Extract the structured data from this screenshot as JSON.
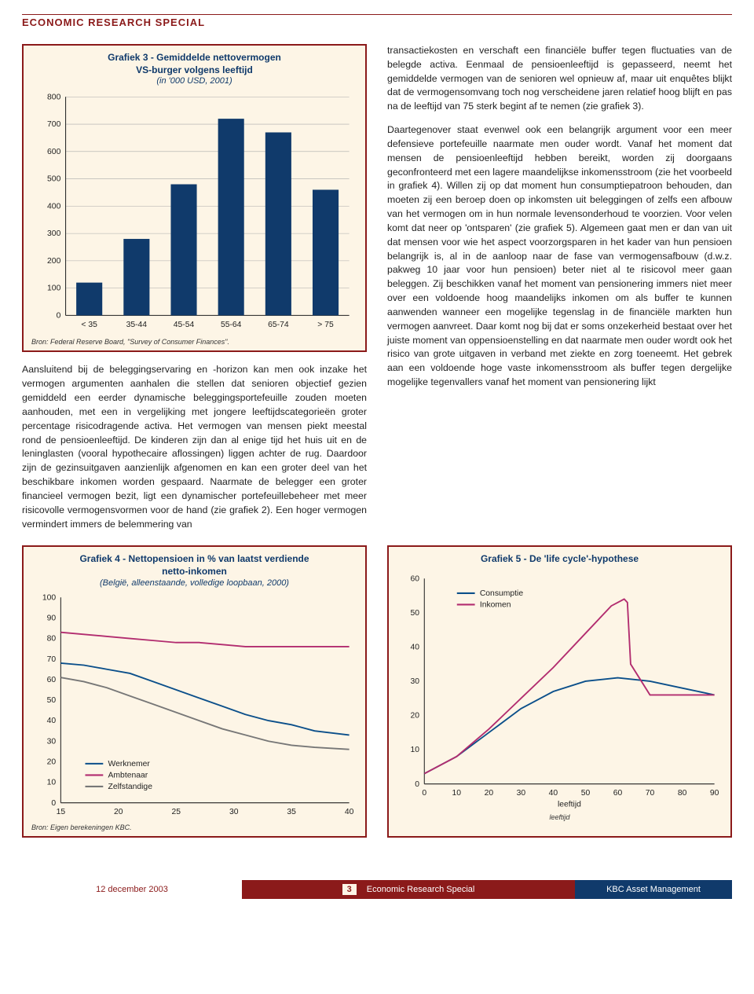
{
  "header": {
    "title": "ECONOMIC RESEARCH SPECIAL"
  },
  "chart3": {
    "type": "bar",
    "title_line1": "Grafiek 3 - Gemiddelde nettovermogen",
    "title_line2": "VS-burger volgens leeftijd",
    "subtitle": "(in '000 USD, 2001)",
    "categories": [
      "< 35",
      "35-44",
      "45-54",
      "55-64",
      "65-74",
      "> 75"
    ],
    "values": [
      120,
      280,
      480,
      720,
      670,
      460
    ],
    "ylim": [
      0,
      800
    ],
    "ytick_step": 100,
    "bar_color": "#103a6b",
    "background_color": "#fdf5e6",
    "source": "Bron: Federal Reserve Board, \"Survey of Consumer Finances\"."
  },
  "left_para": "Aansluitend bij de beleggingservaring en -horizon kan men ook inzake het vermogen argumenten aanhalen die stellen dat senioren objectief gezien gemiddeld een eerder dynamische beleggingsportefeuille zouden moeten aanhouden, met een in vergelijking met jongere leeftijdscategorieën groter percentage risicodragende activa. Het vermogen van mensen piekt meestal rond de pensioenleeftijd. De kinderen zijn dan al enige tijd het huis uit en de leninglasten (vooral hypothecaire aflossingen) liggen achter de rug. Daardoor zijn de gezinsuitgaven aanzienlijk afgenomen en kan een groter deel van het beschikbare inkomen worden gespaard. Naarmate de belegger een groter financieel vermogen bezit, ligt een dynamischer portefeuillebeheer met meer risicovolle vermogensvormen voor de hand (zie grafiek 2). Een hoger vermogen vermindert immers de belemmering van",
  "right_para1": "transactiekosten en verschaft een financiële buffer tegen fluctuaties van de belegde activa. Eenmaal de pensioenleeftijd is gepasseerd, neemt het gemiddelde vermogen van de senioren wel opnieuw af, maar uit enquêtes blijkt dat de vermogensomvang toch nog verscheidene jaren relatief hoog blijft en pas na de leeftijd van 75 sterk begint af te nemen (zie grafiek 3).",
  "right_para2": "Daartegenover staat evenwel ook een belangrijk argument voor een meer defensieve portefeuille naarmate men ouder wordt. Vanaf het moment dat mensen de pensioenleeftijd hebben bereikt, worden zij doorgaans geconfronteerd met een lagere maandelijkse inkomensstroom (zie het voorbeeld in grafiek 4). Willen zij op dat moment hun consumptiepatroon behouden, dan moeten zij een beroep doen op inkomsten uit beleggingen of zelfs een afbouw van het vermogen om in hun normale levensonderhoud te voorzien. Voor velen komt dat neer op 'ontsparen' (zie grafiek 5). Algemeen gaat men er dan van uit dat mensen voor wie het aspect voorzorgsparen in het kader van hun pensioen belangrijk is, al in de aanloop naar de fase van vermogensafbouw (d.w.z. pakweg 10 jaar voor hun pensioen) beter niet al te risicovol meer gaan beleggen. Zij beschikken vanaf het moment van pensionering immers niet meer over een voldoende hoog maandelijks inkomen om als buffer te kunnen aanwenden wanneer een mogelijke tegenslag in de financiële markten hun vermogen aanvreet. Daar komt nog bij dat er soms onzekerheid bestaat over het juiste moment van oppensioenstelling en dat naarmate men ouder wordt ook het risico van grote uitgaven in verband met ziekte en zorg toeneemt. Het gebrek aan een voldoende hoge vaste inkomensstroom als buffer tegen dergelijke mogelijke tegenvallers vanaf het moment van pensionering lijkt",
  "chart4": {
    "type": "line",
    "title_line1": "Grafiek 4 - Nettopensioen in % van laatst verdiende",
    "title_line2": "netto-inkomen",
    "subtitle": "(België, alleenstaande, volledige loopbaan, 2000)",
    "xlabel": "",
    "ylim": [
      0,
      100
    ],
    "ytick_step": 10,
    "xlim": [
      15,
      40
    ],
    "xtick_step": 5,
    "series": [
      {
        "name": "Werknemer",
        "color": "#0b4f8a",
        "x": [
          15,
          17,
          19,
          21,
          23,
          25,
          27,
          29,
          31,
          33,
          35,
          37,
          40
        ],
        "y": [
          68,
          67,
          65,
          63,
          59,
          55,
          51,
          47,
          43,
          40,
          38,
          35,
          33
        ]
      },
      {
        "name": "Ambtenaar",
        "color": "#b22c6f",
        "x": [
          15,
          17,
          19,
          21,
          23,
          25,
          27,
          29,
          31,
          33,
          35,
          37,
          40
        ],
        "y": [
          83,
          82,
          81,
          80,
          79,
          78,
          78,
          77,
          76,
          76,
          76,
          76,
          76
        ]
      },
      {
        "name": "Zelfstandige",
        "color": "#777777",
        "x": [
          15,
          17,
          19,
          21,
          23,
          25,
          27,
          29,
          31,
          33,
          35,
          37,
          40
        ],
        "y": [
          61,
          59,
          56,
          52,
          48,
          44,
          40,
          36,
          33,
          30,
          28,
          27,
          26
        ]
      }
    ],
    "source": "Bron: Eigen berekeningen KBC.",
    "legend_labels": [
      "Werknemer",
      "Ambtenaar",
      "Zelfstandige"
    ]
  },
  "chart5": {
    "type": "line",
    "title": "Grafiek 5 - De 'life cycle'-hypothese",
    "xlabel": "leeftijd",
    "ylim": [
      0,
      60
    ],
    "ytick_step": 10,
    "xlim": [
      0,
      90
    ],
    "xtick_step": 10,
    "series": [
      {
        "name": "Consumptie",
        "color": "#0b4f8a",
        "x": [
          0,
          10,
          20,
          30,
          40,
          50,
          60,
          70,
          80,
          90
        ],
        "y": [
          3,
          8,
          15,
          22,
          27,
          30,
          31,
          30,
          28,
          26
        ]
      },
      {
        "name": "Inkomen",
        "color": "#b22c6f",
        "x": [
          0,
          10,
          20,
          30,
          40,
          50,
          58,
          62,
          63,
          64,
          70,
          80,
          90
        ],
        "y": [
          3,
          8,
          16,
          25,
          34,
          44,
          52,
          54,
          53,
          35,
          26,
          26,
          26
        ]
      }
    ],
    "legend_labels": [
      "Consumptie",
      "Inkomen"
    ]
  },
  "footer": {
    "date": "12 december 2003",
    "page": "3",
    "center": "Economic Research Special",
    "right": "KBC Asset Management"
  },
  "colors": {
    "brand_red": "#8b1a1a",
    "brand_blue": "#103a6b",
    "cream": "#fdf5e6"
  }
}
